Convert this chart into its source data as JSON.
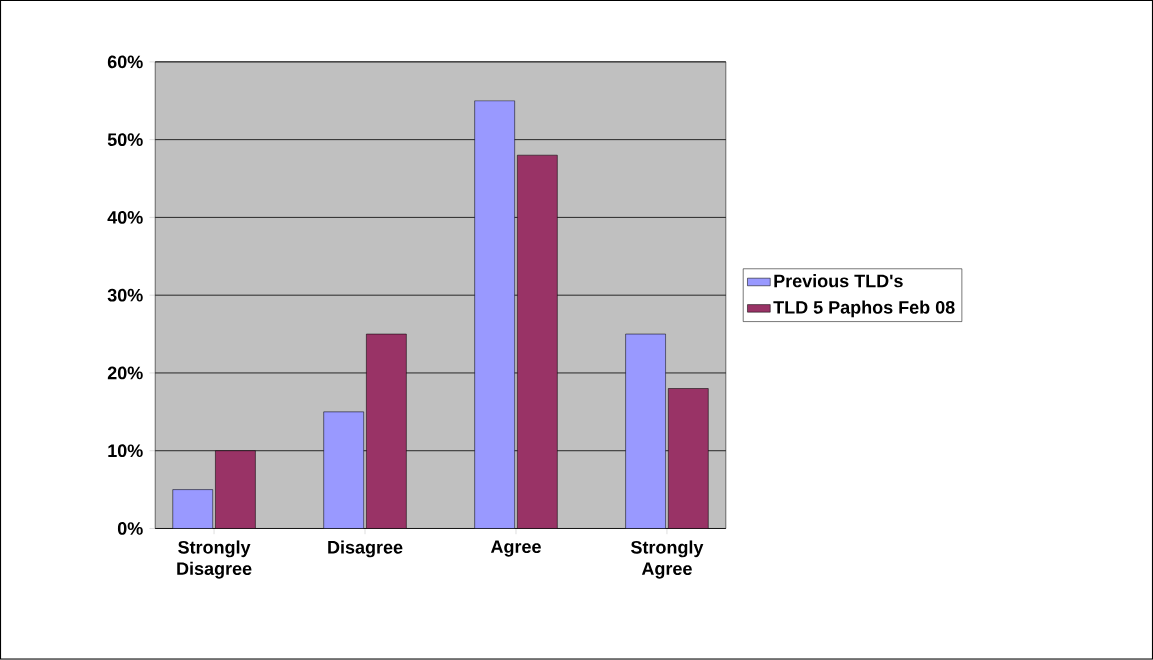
{
  "chart_data": {
    "type": "bar",
    "categories": [
      "Strongly Disagree",
      "Disagree",
      "Agree",
      "Strongly Agree"
    ],
    "series": [
      {
        "name": "Previous TLD's",
        "color": "#9999ff",
        "values": [
          5,
          15,
          55,
          25
        ]
      },
      {
        "name": "TLD 5 Paphos Feb 08",
        "color": "#993366",
        "values": [
          10,
          25,
          48,
          18
        ]
      }
    ],
    "ylim": [
      0,
      60
    ],
    "yticks": [
      {
        "value": 0,
        "label": "0%"
      },
      {
        "value": 10,
        "label": "10%"
      },
      {
        "value": 20,
        "label": "20%"
      },
      {
        "value": 30,
        "label": "30%"
      },
      {
        "value": 40,
        "label": "40%"
      },
      {
        "value": 50,
        "label": "50%"
      },
      {
        "value": 60,
        "label": "60%"
      }
    ],
    "grid": "y",
    "legend": "right"
  }
}
